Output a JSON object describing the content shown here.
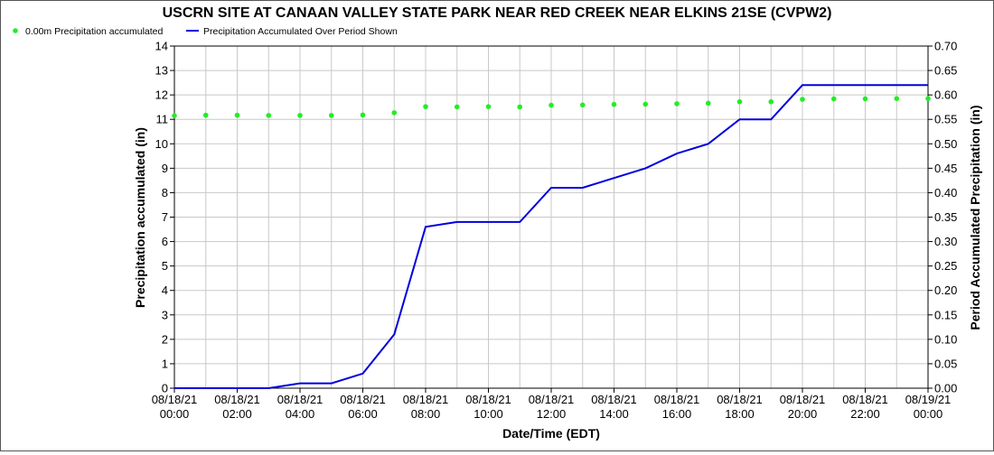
{
  "chart_data": {
    "type": "line",
    "title": "USCRN SITE AT CANAAN VALLEY STATE PARK NEAR RED CREEK NEAR ELKINS 21SE (CVPW2)",
    "xlabel": "Date/Time (EDT)",
    "ylabel_left": "Precipitation accumulated (in)",
    "ylabel_right": "Period Accumulated Precipitation (in)",
    "ylim_left": [
      0,
      14
    ],
    "ylim_right": [
      0,
      0.7
    ],
    "grid": true,
    "legend_position": "top-left",
    "y_ticks_left": [
      "0",
      "1",
      "2",
      "3",
      "4",
      "5",
      "6",
      "7",
      "8",
      "9",
      "10",
      "11",
      "12",
      "13",
      "14"
    ],
    "y_ticks_right": [
      "0.00",
      "0.05",
      "0.10",
      "0.15",
      "0.20",
      "0.25",
      "0.30",
      "0.35",
      "0.40",
      "0.45",
      "0.50",
      "0.55",
      "0.60",
      "0.65",
      "0.70"
    ],
    "x_ticks": [
      {
        "date": "08/18/21",
        "time": "00:00"
      },
      {
        "date": "08/18/21",
        "time": "02:00"
      },
      {
        "date": "08/18/21",
        "time": "04:00"
      },
      {
        "date": "08/18/21",
        "time": "06:00"
      },
      {
        "date": "08/18/21",
        "time": "08:00"
      },
      {
        "date": "08/18/21",
        "time": "10:00"
      },
      {
        "date": "08/18/21",
        "time": "12:00"
      },
      {
        "date": "08/18/21",
        "time": "14:00"
      },
      {
        "date": "08/18/21",
        "time": "16:00"
      },
      {
        "date": "08/18/21",
        "time": "18:00"
      },
      {
        "date": "08/18/21",
        "time": "20:00"
      },
      {
        "date": "08/18/21",
        "time": "22:00"
      },
      {
        "date": "08/19/21",
        "time": "00:00"
      }
    ],
    "x": [
      "08/18/21 00:00",
      "08/18/21 01:00",
      "08/18/21 02:00",
      "08/18/21 03:00",
      "08/18/21 04:00",
      "08/18/21 05:00",
      "08/18/21 06:00",
      "08/18/21 07:00",
      "08/18/21 08:00",
      "08/18/21 09:00",
      "08/18/21 10:00",
      "08/18/21 11:00",
      "08/18/21 12:00",
      "08/18/21 13:00",
      "08/18/21 14:00",
      "08/18/21 15:00",
      "08/18/21 16:00",
      "08/18/21 17:00",
      "08/18/21 18:00",
      "08/18/21 19:00",
      "08/18/21 20:00",
      "08/18/21 21:00",
      "08/18/21 22:00",
      "08/18/21 23:00",
      "08/19/21 00:00"
    ],
    "series": [
      {
        "name": "0.00m Precipitation accumulated",
        "kind": "scatter",
        "axis": "left",
        "color": "#22ee22",
        "x": [
          "08/18/21 00:00",
          "08/18/21 01:00",
          "08/18/21 02:00",
          "08/18/21 03:00",
          "08/18/21 04:00",
          "08/18/21 05:00",
          "08/18/21 06:00",
          "08/18/21 07:00",
          "08/18/21 08:00",
          "08/18/21 09:00",
          "08/18/21 10:00",
          "08/18/21 11:00",
          "08/18/21 12:00",
          "08/18/21 13:00",
          "08/18/21 14:00",
          "08/18/21 15:00",
          "08/18/21 16:00",
          "08/18/21 17:00",
          "08/18/21 18:00",
          "08/18/21 19:00",
          "08/18/21 20:00",
          "08/18/21 21:00",
          "08/18/21 22:00",
          "08/18/21 23:00",
          "08/19/21 00:00"
        ],
        "values": [
          11.15,
          11.17,
          11.17,
          11.16,
          11.16,
          11.16,
          11.18,
          11.27,
          11.52,
          11.51,
          11.52,
          11.51,
          11.58,
          11.59,
          11.61,
          11.62,
          11.64,
          11.66,
          11.72,
          11.72,
          11.82,
          11.84,
          11.84,
          11.85,
          11.85
        ]
      },
      {
        "name": "Precipitation Accumulated Over Period Shown",
        "kind": "line",
        "axis": "right",
        "color": "#0000dd",
        "x": [
          "08/18/21 00:00",
          "08/18/21 01:00",
          "08/18/21 02:00",
          "08/18/21 03:00",
          "08/18/21 04:00",
          "08/18/21 05:00",
          "08/18/21 06:00",
          "08/18/21 07:00",
          "08/18/21 08:00",
          "08/18/21 09:00",
          "08/18/21 10:00",
          "08/18/21 11:00",
          "08/18/21 12:00",
          "08/18/21 13:00",
          "08/18/21 14:00",
          "08/18/21 15:00",
          "08/18/21 16:00",
          "08/18/21 17:00",
          "08/18/21 18:00",
          "08/18/21 19:00",
          "08/18/21 20:00",
          "08/18/21 21:00",
          "08/18/21 22:00",
          "08/18/21 23:00",
          "08/19/21 00:00"
        ],
        "values": [
          0.0,
          0.0,
          0.0,
          0.0,
          0.01,
          0.01,
          0.03,
          0.11,
          0.33,
          0.34,
          0.34,
          0.34,
          0.41,
          0.41,
          0.43,
          0.45,
          0.48,
          0.5,
          0.55,
          0.55,
          0.62,
          0.62,
          0.62,
          0.62,
          0.62
        ]
      }
    ]
  }
}
